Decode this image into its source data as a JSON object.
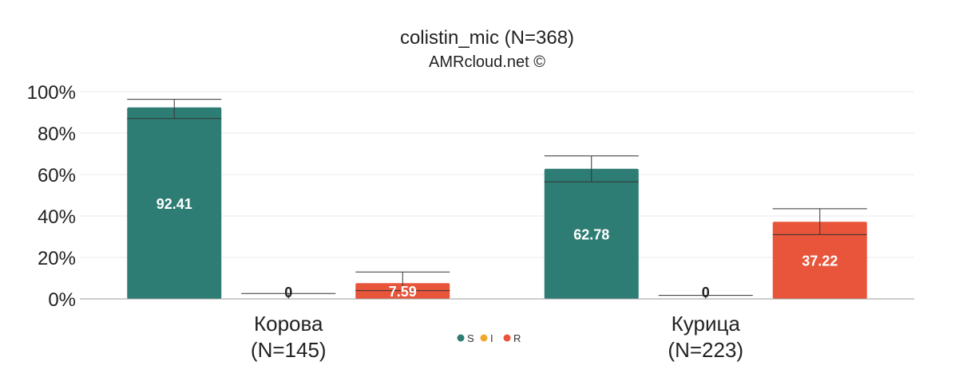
{
  "chart_data": {
    "type": "bar",
    "title": "colistin_mic (N=368)",
    "subtitle": "AMRcloud.net ©",
    "categories": [
      {
        "line1": "Корова",
        "line2": "(N=145)"
      },
      {
        "line1": "Курица",
        "line2": "(N=223)"
      }
    ],
    "series": [
      {
        "name": "S",
        "color": "#2e7d74",
        "values": [
          92.41,
          62.78
        ],
        "labels": [
          "92.41",
          "62.78"
        ],
        "err_low": [
          87.0,
          56.5
        ],
        "err_high": [
          96.3,
          69.0
        ]
      },
      {
        "name": "I",
        "color": "#f0a830",
        "values": [
          0,
          0
        ],
        "labels": [
          "0",
          "0"
        ],
        "err_low": [
          0,
          0
        ],
        "err_high": [
          2.6,
          1.7
        ]
      },
      {
        "name": "R",
        "color": "#e8553a",
        "values": [
          7.59,
          37.22
        ],
        "labels": [
          "7.59",
          "37.22"
        ],
        "err_low": [
          4.0,
          31.0
        ],
        "err_high": [
          13.0,
          43.5
        ]
      }
    ],
    "yticks": [
      "0%",
      "20%",
      "40%",
      "60%",
      "80%",
      "100%"
    ],
    "ylim": [
      0,
      100
    ],
    "grid": true,
    "legend": "bottom-center"
  }
}
